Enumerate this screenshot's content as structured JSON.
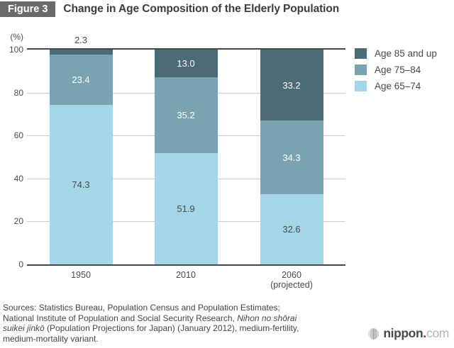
{
  "figure": {
    "badge": "Figure 3",
    "title": "Change in Age Composition of the Elderly Population"
  },
  "chart_data": {
    "type": "bar",
    "stacked": true,
    "title": "Change in Age Composition of the Elderly Population",
    "unit_label": "(%)",
    "xlabel": "",
    "ylabel": "(%)",
    "ylim": [
      0,
      100
    ],
    "y_ticks": [
      0,
      20,
      40,
      60,
      80,
      100
    ],
    "grid": true,
    "legend_position": "right",
    "categories": [
      "1950",
      "2010",
      "2060"
    ],
    "category_sublabels": [
      "",
      "",
      "(projected)"
    ],
    "series": [
      {
        "name": "Age 65–74",
        "color": "#a3d7e8",
        "values": [
          74.3,
          51.9,
          32.6
        ],
        "value_labels": [
          "74.3",
          "51.9",
          "32.6"
        ],
        "label_color": "#4a4a4a"
      },
      {
        "name": "Age 75–84",
        "color": "#7aa3b1",
        "values": [
          23.4,
          35.2,
          34.3
        ],
        "value_labels": [
          "23.4",
          "35.2",
          "34.3"
        ],
        "label_color": "#ffffff"
      },
      {
        "name": "Age 85 and up",
        "color": "#4d6b77",
        "values": [
          2.3,
          13.0,
          33.2
        ],
        "value_labels": [
          "2.3",
          "13.0",
          "33.2"
        ],
        "label_color": "#ffffff"
      }
    ],
    "legend": [
      {
        "label": "Age 85 and up",
        "color": "#4d6b77"
      },
      {
        "label": "Age 75–84",
        "color": "#7aa3b1"
      },
      {
        "label": "Age 65–74",
        "color": "#a3d7e8"
      }
    ]
  },
  "sources": {
    "lines": [
      [
        {
          "text": "Sources: Statistics Bureau, Population Census and Population Estimates;",
          "italic": false
        }
      ],
      [
        {
          "text": "National Institute of Population and Social Security Research, ",
          "italic": false
        },
        {
          "text": "Nihon no shōrai",
          "italic": true
        }
      ],
      [
        {
          "text": "suikei jinkō",
          "italic": true
        },
        {
          "text": " (Population Projections for Japan) (January 2012), medium-fertility,",
          "italic": false
        }
      ],
      [
        {
          "text": "medium-mortality variant.",
          "italic": false
        }
      ]
    ]
  },
  "branding": {
    "logo_icon": "striped-globe-icon",
    "name_primary": "nippon",
    "dot": ".",
    "name_secondary": "com",
    "dot_color": "#e60012"
  }
}
